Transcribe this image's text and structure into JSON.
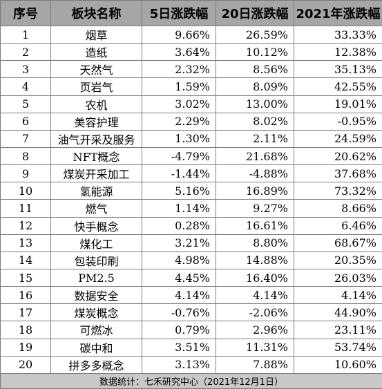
{
  "headers": [
    "序号",
    "板块名称",
    "5日涨跌幅",
    "20日涨跌幅",
    "2021年涨跌幅"
  ],
  "rows": [
    {
      "idx": "1",
      "name": "烟草",
      "d5": "9.66%",
      "d20": "26.59%",
      "y2021": "33.33%"
    },
    {
      "idx": "2",
      "name": "造纸",
      "d5": "3.64%",
      "d20": "10.12%",
      "y2021": "12.38%"
    },
    {
      "idx": "3",
      "name": "天然气",
      "d5": "2.32%",
      "d20": "8.56%",
      "y2021": "35.13%"
    },
    {
      "idx": "4",
      "name": "页岩气",
      "d5": "1.59%",
      "d20": "8.09%",
      "y2021": "42.55%"
    },
    {
      "idx": "5",
      "name": "农机",
      "d5": "3.02%",
      "d20": "13.00%",
      "y2021": "19.01%"
    },
    {
      "idx": "6",
      "name": "美容护理",
      "d5": "2.29%",
      "d20": "8.02%",
      "y2021": "-0.95%"
    },
    {
      "idx": "7",
      "name": "油气开采及服务",
      "d5": "1.30%",
      "d20": "2.11%",
      "y2021": "24.59%"
    },
    {
      "idx": "8",
      "name": "NFT概念",
      "d5": "-4.79%",
      "d20": "21.68%",
      "y2021": "20.62%"
    },
    {
      "idx": "9",
      "name": "煤炭开采加工",
      "d5": "-1.44%",
      "d20": "-4.88%",
      "y2021": "37.68%"
    },
    {
      "idx": "10",
      "name": "氢能源",
      "d5": "5.16%",
      "d20": "16.89%",
      "y2021": "73.32%"
    },
    {
      "idx": "11",
      "name": "燃气",
      "d5": "1.14%",
      "d20": "9.27%",
      "y2021": "8.66%"
    },
    {
      "idx": "12",
      "name": "快手概念",
      "d5": "0.28%",
      "d20": "16.61%",
      "y2021": "6.46%"
    },
    {
      "idx": "13",
      "name": "煤化工",
      "d5": "3.21%",
      "d20": "8.80%",
      "y2021": "68.67%"
    },
    {
      "idx": "14",
      "name": "包装印刷",
      "d5": "4.98%",
      "d20": "14.88%",
      "y2021": "20.35%"
    },
    {
      "idx": "15",
      "name": "PM2.5",
      "d5": "4.45%",
      "d20": "16.40%",
      "y2021": "26.03%"
    },
    {
      "idx": "16",
      "name": "数据安全",
      "d5": "4.14%",
      "d20": "4.14%",
      "y2021": "4.14%"
    },
    {
      "idx": "17",
      "name": "煤炭概念",
      "d5": "-0.76%",
      "d20": "-2.06%",
      "y2021": "44.90%"
    },
    {
      "idx": "18",
      "name": "可燃冰",
      "d5": "0.79%",
      "d20": "2.96%",
      "y2021": "23.11%"
    },
    {
      "idx": "19",
      "name": "碳中和",
      "d5": "3.51%",
      "d20": "11.31%",
      "y2021": "53.74%"
    },
    {
      "idx": "20",
      "name": "拼多多概念",
      "d5": "3.13%",
      "d20": "7.88%",
      "y2021": "10.60%"
    }
  ],
  "footer": "数据统计：七禾研究中心（2021年12月1日）"
}
